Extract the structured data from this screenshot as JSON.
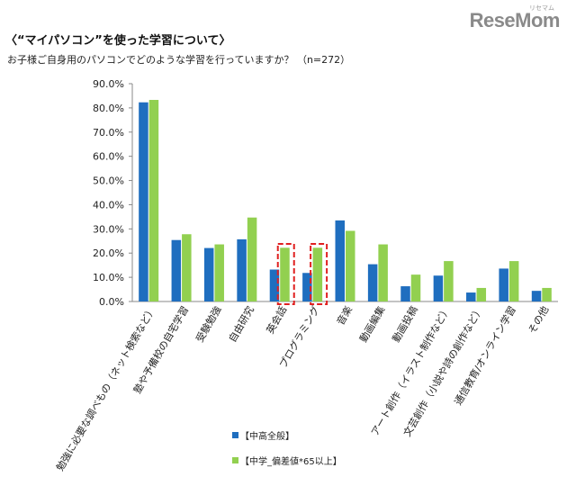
{
  "header": {
    "logo": "ReseMom",
    "logo_sub": "リセマム",
    "title": "〈“マイパソコン”を使った学習について〉",
    "subtitle": "お子様ご自身用のパソコンでどのような学習を行っていますか？ （n=272）"
  },
  "chart_data": {
    "type": "bar",
    "title": "〈“マイパソコン”を使った学習について〉",
    "subtitle": "お子様ご自身用のパソコンでどのような学習を行っていますか？ （n=272）",
    "xlabel": "",
    "ylabel": "",
    "ylim": [
      0,
      90
    ],
    "yticks": [
      "0.0%",
      "10.0%",
      "20.0%",
      "30.0%",
      "40.0%",
      "50.0%",
      "60.0%",
      "70.0%",
      "80.0%",
      "90.0%"
    ],
    "grid": false,
    "legend_position": "bottom",
    "categories": [
      "勉強に必要な調べもの（ネット検索など）",
      "塾や予備校の自宅学習",
      "受験勉強",
      "自由研究",
      "英会話",
      "プログラミング",
      "音楽",
      "動画編集",
      "動画投稿",
      "アート創作（イラスト制作など）",
      "文芸創作（小説や詩の創作など）",
      "通信教育/オンライン学習",
      "その他"
    ],
    "series": [
      {
        "name": "【中高全般】",
        "color": "#1f6ebf",
        "values": [
          82.3,
          25.4,
          22.1,
          25.7,
          13.2,
          11.8,
          33.5,
          15.4,
          6.3,
          10.7,
          3.7,
          13.6,
          4.4
        ]
      },
      {
        "name": "【中学_偏差値*65以上】",
        "color": "#92d050",
        "values": [
          83.3,
          27.8,
          23.6,
          34.7,
          22.2,
          22.2,
          29.2,
          23.6,
          11.1,
          16.7,
          5.6,
          16.7,
          5.6
        ]
      }
    ],
    "highlighted_categories": [
      "英会話",
      "プログラミング"
    ],
    "highlight_color": "#e02020"
  }
}
